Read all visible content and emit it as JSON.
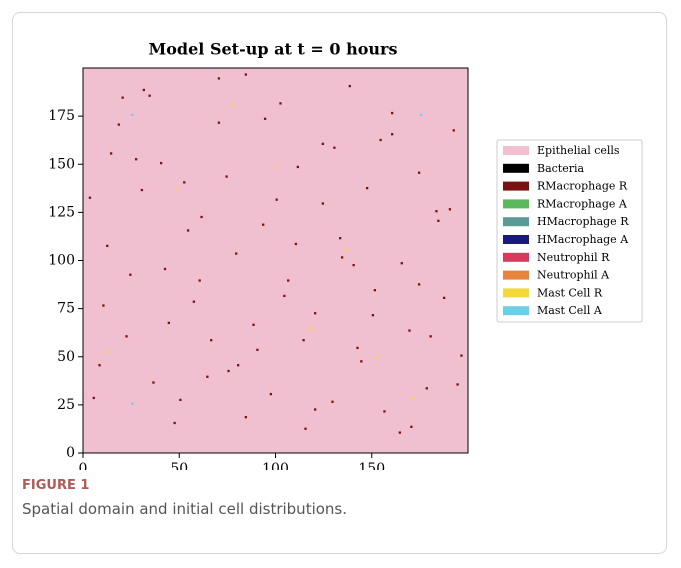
{
  "chart_data": {
    "type": "scatter",
    "title": "Model Set-up at t = 0 hours",
    "xlim": [
      0,
      200
    ],
    "ylim": [
      0,
      200
    ],
    "xticks": [
      0,
      50,
      100,
      150
    ],
    "yticks": [
      0,
      25,
      50,
      75,
      100,
      125,
      150,
      175
    ],
    "series": [
      {
        "name": "Epithelial cells",
        "color": "#f0c0d0",
        "background": true,
        "x": [],
        "y": []
      },
      {
        "name": "Bacteria",
        "color": "#000000",
        "x": [],
        "y": []
      },
      {
        "name": "RMacrophage R",
        "color": "#7a1212",
        "x": [
          3,
          8,
          12,
          18,
          22,
          27,
          31,
          36,
          42,
          47,
          52,
          57,
          61,
          66,
          70,
          75,
          79,
          84,
          88,
          93,
          97,
          102,
          106,
          111,
          115,
          120,
          124,
          129,
          133,
          138,
          142,
          147,
          151,
          156,
          160,
          165,
          169,
          174,
          178,
          183,
          187,
          192,
          196,
          5,
          14,
          24,
          34,
          44,
          54,
          64,
          74,
          84,
          94,
          104,
          114,
          124,
          134,
          144,
          154,
          164,
          174,
          184,
          194,
          10,
          30,
          50,
          70,
          90,
          110,
          130,
          150,
          170,
          190,
          20,
          40,
          60,
          80,
          100,
          120,
          140,
          160,
          180
        ],
        "y": [
          132,
          45,
          107,
          170,
          60,
          152,
          188,
          36,
          95,
          15,
          140,
          78,
          122,
          58,
          171,
          42,
          103,
          196,
          66,
          118,
          30,
          181,
          89,
          148,
          12,
          72,
          160,
          26,
          111,
          190,
          54,
          137,
          84,
          21,
          176,
          98,
          63,
          145,
          33,
          125,
          80,
          167,
          50,
          28,
          155,
          92,
          185,
          67,
          115,
          39,
          143,
          18,
          173,
          81,
          58,
          129,
          101,
          47,
          162,
          10,
          87,
          120,
          35,
          76,
          136,
          27,
          194,
          53,
          108,
          158,
          71,
          13,
          126,
          184,
          150,
          89,
          45,
          131,
          22,
          97,
          165,
          60
        ],
        "size": 1
      },
      {
        "name": "RMacrophage A",
        "color": "#5cb85c",
        "x": [],
        "y": []
      },
      {
        "name": "HMacrophage R",
        "color": "#5b9a95",
        "x": [],
        "y": []
      },
      {
        "name": "HMacrophage A",
        "color": "#1a1a7e",
        "x": [],
        "y": []
      },
      {
        "name": "Neutrophil R",
        "color": "#d63a5c",
        "x": [],
        "y": []
      },
      {
        "name": "Neutrophil A",
        "color": "#e8843c",
        "x": [],
        "y": []
      },
      {
        "name": "Mast Cell R",
        "color": "#f4d83c",
        "x": [
          12,
          48,
          77,
          118,
          136,
          152,
          171,
          100
        ],
        "y": [
          52,
          137,
          180,
          64,
          105,
          49,
          28,
          148
        ]
      },
      {
        "name": "Mast Cell A",
        "color": "#6ccfe8",
        "x": [
          25,
          25,
          175
        ],
        "y": [
          175,
          25,
          175
        ]
      }
    ]
  },
  "figure": {
    "label": "FIGURE 1",
    "caption": "Spatial domain and initial cell distributions."
  }
}
